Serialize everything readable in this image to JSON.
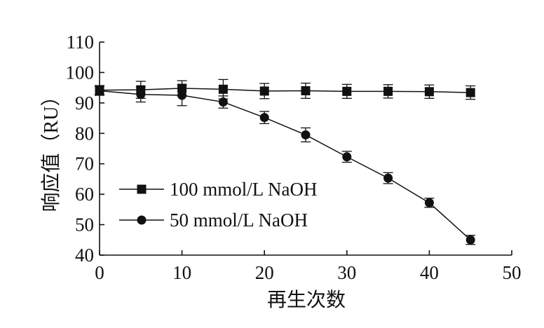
{
  "chart_data": {
    "type": "line",
    "title": "",
    "xlabel": "再生次数",
    "ylabel": "响应值（RU）",
    "xlim": [
      0,
      50
    ],
    "ylim": [
      40,
      110
    ],
    "xticks": [
      0,
      10,
      20,
      30,
      40,
      50
    ],
    "yticks": [
      40,
      50,
      60,
      70,
      80,
      90,
      100,
      110
    ],
    "grid": false,
    "legend_position": "left",
    "x": [
      0,
      5,
      10,
      15,
      20,
      25,
      30,
      35,
      40,
      45
    ],
    "series": [
      {
        "name": "100 mmol/L NaOH",
        "marker": "square",
        "color": "#111111",
        "values": [
          94.2,
          94.3,
          94.8,
          94.5,
          93.9,
          94.0,
          93.8,
          93.8,
          93.7,
          93.4
        ],
        "errors": [
          1.5,
          2.8,
          2.5,
          3.2,
          2.5,
          2.5,
          2.3,
          2.2,
          2.2,
          2.2
        ]
      },
      {
        "name": "50 mmol/L NaOH",
        "marker": "circle",
        "color": "#111111",
        "values": [
          94.0,
          92.8,
          92.5,
          90.3,
          85.2,
          79.5,
          72.3,
          65.3,
          57.2,
          45.0
        ],
        "errors": [
          1.5,
          2.5,
          3.4,
          2.0,
          2.0,
          2.3,
          1.8,
          1.8,
          1.5,
          1.5
        ]
      }
    ]
  }
}
